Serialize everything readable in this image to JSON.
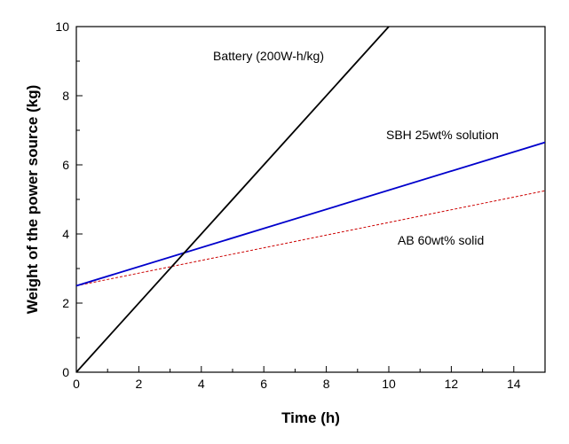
{
  "chart_data": {
    "type": "line",
    "title": "",
    "xlabel": "Time (h)",
    "ylabel": "Weight of the power source (kg)",
    "xlim": [
      0,
      15
    ],
    "ylim": [
      0,
      10
    ],
    "x_ticks": [
      "0",
      "2",
      "4",
      "6",
      "8",
      "10",
      "12",
      "14"
    ],
    "y_ticks": [
      "0",
      "2",
      "4",
      "6",
      "8",
      "10"
    ],
    "grid": false,
    "series": [
      {
        "name": "Battery (200W-h/kg)",
        "color": "#000000",
        "dash": "solid",
        "x": [
          0,
          10
        ],
        "y": [
          0,
          10
        ]
      },
      {
        "name": "SBH 25wt% solution",
        "color": "#0000cc",
        "dash": "solid",
        "x": [
          0,
          15
        ],
        "y": [
          2.5,
          6.65
        ]
      },
      {
        "name": "AB 60wt% solid",
        "color": "#cc0000",
        "dash": "dashed",
        "x": [
          0,
          15
        ],
        "y": [
          2.5,
          5.25
        ]
      }
    ]
  }
}
